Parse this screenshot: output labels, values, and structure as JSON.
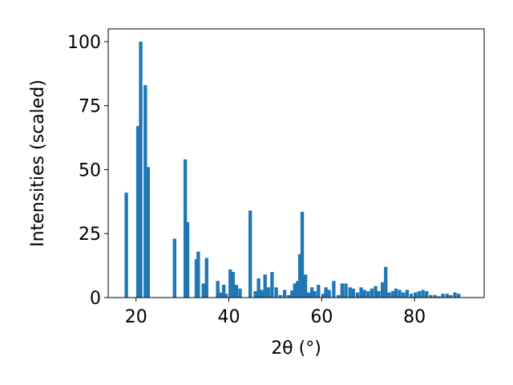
{
  "chart_data": {
    "type": "bar",
    "title": "",
    "xlabel": "2θ (°)",
    "ylabel": "Intensities (scaled)",
    "xlim": [
      14,
      95
    ],
    "ylim": [
      0,
      105
    ],
    "xticks": [
      20,
      40,
      60,
      80
    ],
    "yticks": [
      0,
      25,
      50,
      75,
      100
    ],
    "grid": false,
    "bar_color": "#1f77b4",
    "bar_width": 0.75,
    "x": [
      17.9,
      20.4,
      21.0,
      22.0,
      22.6,
      28.3,
      30.6,
      31.1,
      33.0,
      33.4,
      34.5,
      35.2,
      37.6,
      38.2,
      38.9,
      39.4,
      40.3,
      40.9,
      41.6,
      42.4,
      44.6,
      45.7,
      46.4,
      47.1,
      47.8,
      48.5,
      49.3,
      50.2,
      51.1,
      52.0,
      52.9,
      53.6,
      54.2,
      54.8,
      55.3,
      55.8,
      56.5,
      57.2,
      57.9,
      58.5,
      59.3,
      60.3,
      60.9,
      61.6,
      62.6,
      63.6,
      64.4,
      65.2,
      66.1,
      66.8,
      67.7,
      68.5,
      69.2,
      70.0,
      70.8,
      71.6,
      72.3,
      73.1,
      73.8,
      74.5,
      75.3,
      76.0,
      76.8,
      77.6,
      78.4,
      79.3,
      80.2,
      81.0,
      81.8,
      82.6,
      83.5,
      84.4,
      85.2,
      86.1,
      87.0,
      87.8,
      88.7,
      89.5
    ],
    "values": [
      41,
      67,
      100,
      83,
      51,
      23,
      54,
      29.5,
      15,
      18,
      5.5,
      15.5,
      6.5,
      2,
      5,
      1.5,
      11,
      10,
      5,
      3.5,
      34,
      2.5,
      7.5,
      3,
      9,
      4,
      10,
      4,
      1,
      3,
      1,
      2.8,
      5.5,
      6.5,
      17,
      33.5,
      9,
      2,
      4,
      2.5,
      5,
      1.5,
      4,
      3,
      6.5,
      1,
      5.5,
      5.5,
      4,
      3.5,
      2,
      4,
      3,
      2.5,
      3.5,
      4.5,
      2.5,
      6,
      12,
      2,
      2.5,
      3.5,
      3,
      2,
      3,
      1.5,
      2,
      2.5,
      3,
      2.5,
      1,
      1,
      0.5,
      1.5,
      1.5,
      1,
      2,
      1.5
    ]
  }
}
